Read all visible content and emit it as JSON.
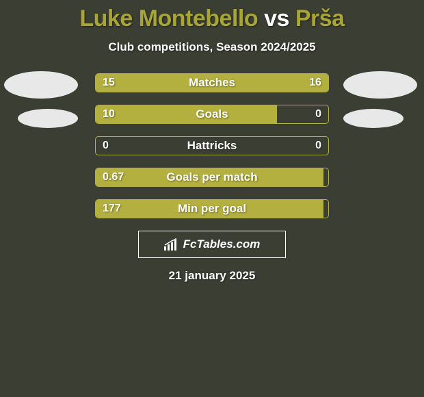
{
  "colors": {
    "background": "#3b3e33",
    "title_p1": "#a7a536",
    "title_vs": "#ffffff",
    "title_p2": "#a7a536",
    "subtitle": "#ffffff",
    "text_on_bar": "#ffffff",
    "bar_border": "#b3b03f",
    "bar_fill": "#b3b03f",
    "avatar": "#e8e8e8",
    "logo_border": "#ffffff",
    "logo_bg": "#3b3e33",
    "logo_text": "#ffffff",
    "logo_icon": "#ffffff",
    "date": "#ffffff"
  },
  "title": {
    "player1": "Luke Montebello",
    "vs": "vs",
    "player2": "Prša"
  },
  "subtitle": "Club competitions, Season 2024/2025",
  "stats": [
    {
      "label": "Matches",
      "left_val": "15",
      "right_val": "16",
      "left_pct": 48.4,
      "right_pct": 51.6
    },
    {
      "label": "Goals",
      "left_val": "10",
      "right_val": "0",
      "left_pct": 78.0,
      "right_pct": 0.0
    },
    {
      "label": "Hattricks",
      "left_val": "0",
      "right_val": "0",
      "left_pct": 0.0,
      "right_pct": 0.0
    },
    {
      "label": "Goals per match",
      "left_val": "0.67",
      "right_val": "",
      "left_pct": 98.0,
      "right_pct": 0.0
    },
    {
      "label": "Min per goal",
      "left_val": "177",
      "right_val": "",
      "left_pct": 98.0,
      "right_pct": 0.0
    }
  ],
  "logo": "FcTables.com",
  "date": "21 january 2025"
}
